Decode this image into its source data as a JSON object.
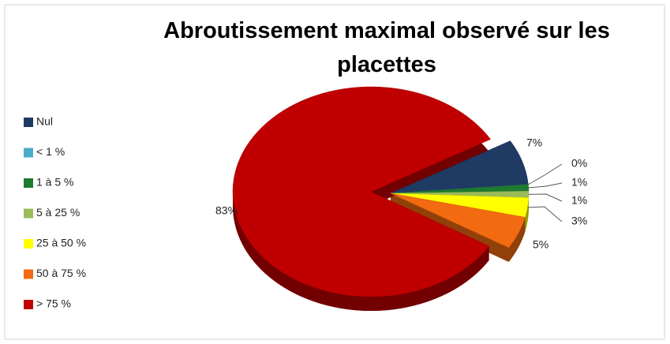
{
  "chart_data": {
    "type": "pie",
    "title": "Abroutissement maximal observé sur les placettes",
    "categories": [
      "Nul",
      "< 1 %",
      "1 à 5 %",
      "5 à 25 %",
      "25 à 50 %",
      "50 à 75 %",
      "> 75 %"
    ],
    "values": [
      7,
      0,
      1,
      1,
      3,
      5,
      83
    ],
    "value_labels": [
      "7%",
      "0%",
      "1%",
      "1%",
      "3%",
      "5%",
      "83%"
    ],
    "colors": [
      "#1f3a63",
      "#4bacc6",
      "#1e7a2e",
      "#9bbb59",
      "#ffff00",
      "#f26b10",
      "#c00000"
    ],
    "legend": "left"
  }
}
